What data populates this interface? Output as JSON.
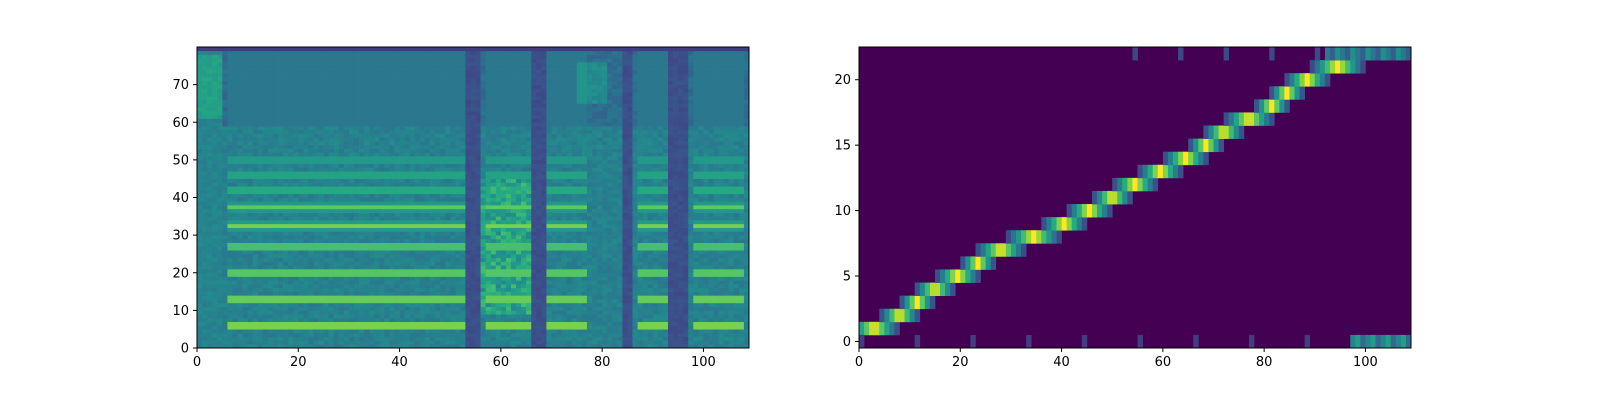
{
  "chart_data": [
    {
      "type": "heatmap",
      "title": "",
      "xlabel": "",
      "ylabel": "",
      "colormap": "viridis",
      "xlim": [
        0,
        109
      ],
      "ylim": [
        0,
        80
      ],
      "n_cols": 109,
      "n_rows": 80,
      "xticks": [
        0,
        20,
        40,
        60,
        80,
        100
      ],
      "yticks": [
        0,
        10,
        20,
        30,
        40,
        50,
        60,
        70
      ],
      "segments": [
        [
          6,
          53
        ],
        [
          57,
          66
        ],
        [
          69,
          77
        ],
        [
          87,
          93
        ],
        [
          98,
          108
        ]
      ],
      "gaps": [
        [
          0,
          5
        ],
        [
          53,
          56
        ],
        [
          66,
          69
        ],
        [
          84,
          86
        ],
        [
          93,
          97
        ]
      ],
      "harmonic_bands": [
        5.5,
        12.5,
        19.5,
        26.5,
        32,
        37,
        41.5,
        45.5,
        49.5
      ]
    },
    {
      "type": "heatmap",
      "title": "",
      "xlabel": "",
      "ylabel": "",
      "colormap": "viridis",
      "xlim": [
        0,
        109
      ],
      "ylim": [
        -0.5,
        22.5
      ],
      "n_cols": 109,
      "n_rows": 23,
      "xticks": [
        0,
        20,
        40,
        60,
        80,
        100
      ],
      "yticks": [
        0,
        5,
        10,
        15,
        20
      ],
      "alignment_path": [
        {
          "token": 1,
          "start": 0,
          "end": 6
        },
        {
          "token": 2,
          "start": 6,
          "end": 10
        },
        {
          "token": 3,
          "start": 10,
          "end": 13
        },
        {
          "token": 4,
          "start": 13,
          "end": 17
        },
        {
          "token": 5,
          "start": 17,
          "end": 22
        },
        {
          "token": 6,
          "start": 22,
          "end": 25
        },
        {
          "token": 7,
          "start": 25,
          "end": 31
        },
        {
          "token": 8,
          "start": 31,
          "end": 38
        },
        {
          "token": 9,
          "start": 38,
          "end": 43
        },
        {
          "token": 10,
          "start": 43,
          "end": 48
        },
        {
          "token": 11,
          "start": 48,
          "end": 52
        },
        {
          "token": 12,
          "start": 52,
          "end": 57
        },
        {
          "token": 13,
          "start": 57,
          "end": 62
        },
        {
          "token": 14,
          "start": 62,
          "end": 67
        },
        {
          "token": 15,
          "start": 67,
          "end": 70
        },
        {
          "token": 16,
          "start": 70,
          "end": 74
        },
        {
          "token": 17,
          "start": 74,
          "end": 80
        },
        {
          "token": 18,
          "start": 80,
          "end": 83
        },
        {
          "token": 19,
          "start": 83,
          "end": 86
        },
        {
          "token": 20,
          "start": 86,
          "end": 91
        },
        {
          "token": 21,
          "start": 91,
          "end": 98
        }
      ],
      "end_row_0_span": [
        97,
        109
      ],
      "end_row_22_span": [
        92,
        109
      ]
    }
  ]
}
